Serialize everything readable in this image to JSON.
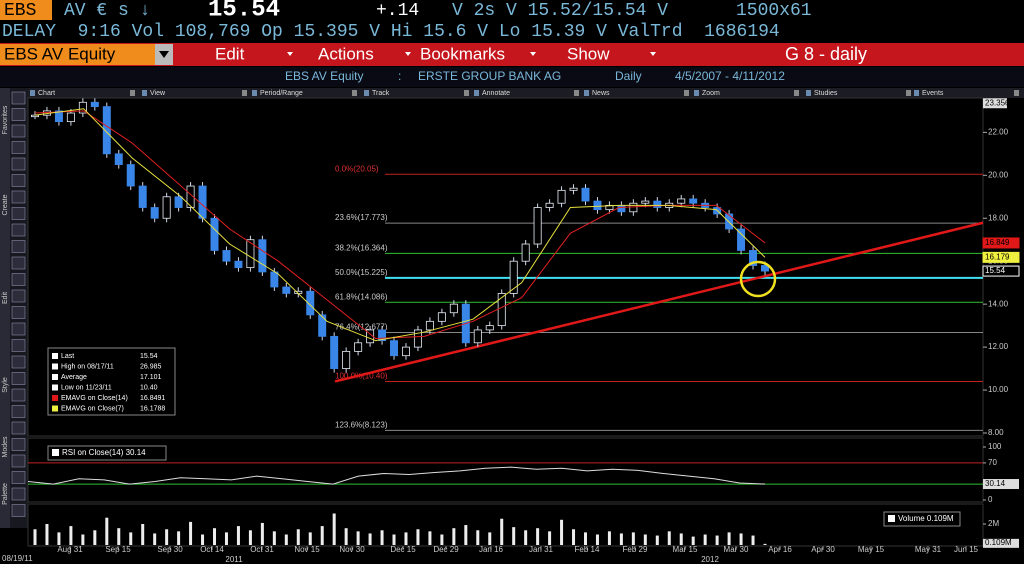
{
  "quote": {
    "ticker": "EBS",
    "market": "AV € s ↓",
    "last": "15.54",
    "change": "+.14",
    "bidask": "V 2s V 15.52/15.54 V",
    "size": "1500x61",
    "details": "DELAY  9:16 Vol 108,769 Op 15.395 V Hi 15.6 V Lo 15.39 V ValTrd  1686194"
  },
  "menu": {
    "security": "EBS AV Equity",
    "items": [
      "Edit",
      "Actions",
      "Bookmarks",
      "Show"
    ],
    "page": "G 8 - daily"
  },
  "header": {
    "security": "EBS AV Equity",
    "separator": ":",
    "name": "ERSTE GROUP BANK AG",
    "period": "Daily",
    "range": "4/5/2007 - 4/11/2012"
  },
  "toolbar": [
    "Chart",
    "View",
    "Period/Range",
    "Track",
    "Annotate",
    "News",
    "Zoom",
    "Studies",
    "Events"
  ],
  "sidebar": [
    "Favorites",
    "Create",
    "Edit",
    "Style",
    "Modes",
    "Palette"
  ],
  "chart": {
    "type": "candlestick",
    "price": {
      "ylim": [
        7.86,
        23.6
      ],
      "yticks": [
        {
          "value": 22,
          "label": "22.00"
        },
        {
          "value": 20,
          "label": "20.00"
        },
        {
          "value": 18,
          "label": "18.00"
        },
        {
          "value": 16,
          "label": "16.00"
        },
        {
          "value": 14,
          "label": "14.00"
        },
        {
          "value": 12,
          "label": "12.00"
        },
        {
          "value": 10,
          "label": "10.00"
        },
        {
          "value": 8,
          "label": "8.00"
        }
      ],
      "top_value": 23.356,
      "values": [
        22.8,
        23.0,
        22.5,
        22.9,
        23.4,
        23.2,
        21.0,
        20.5,
        19.5,
        18.5,
        18.0,
        19.0,
        18.5,
        19.5,
        18.0,
        16.5,
        16.0,
        15.7,
        17.0,
        15.5,
        14.8,
        14.5,
        14.6,
        13.5,
        12.5,
        11.0,
        11.8,
        12.2,
        12.8,
        12.3,
        11.6,
        12.0,
        12.8,
        13.2,
        13.6,
        14.0,
        12.2,
        12.8,
        13.0,
        14.5,
        16.0,
        16.8,
        18.5,
        18.7,
        19.3,
        19.4,
        18.8,
        18.4,
        18.6,
        18.3,
        18.7,
        18.8,
        18.5,
        18.7,
        18.9,
        18.7,
        18.5,
        18.2,
        17.5,
        16.5,
        15.8,
        15.54
      ],
      "ema14": {
        "color": "#e02020",
        "values": [
          22.9,
          23.0,
          21.5,
          19.5,
          17.5,
          16.0,
          14.2,
          12.4,
          12.5,
          13.2,
          14.3,
          17.3,
          18.5,
          18.6,
          18.6,
          16.85
        ]
      },
      "ema7": {
        "color": "#e8e040",
        "values": [
          22.8,
          23.1,
          20.8,
          19.0,
          16.8,
          15.4,
          13.2,
          12.3,
          12.7,
          13.3,
          15.0,
          18.5,
          18.6,
          18.6,
          18.4,
          16.18
        ]
      },
      "fib": [
        {
          "label": "0.0%(20.05)",
          "value": 20.05,
          "color": "#c02020"
        },
        {
          "label": "23.6%(17.773)",
          "value": 17.773,
          "color": "#888888"
        },
        {
          "label": "38.2%(16.364)",
          "value": 16.364,
          "color": "#30c030"
        },
        {
          "label": "50.0%(15.225)",
          "value": 15.225,
          "color": "#40e0f0"
        },
        {
          "label": "61.8%(14.086)",
          "value": 14.086,
          "color": "#30c030"
        },
        {
          "label": "76.4%(12.677)",
          "value": 12.677,
          "color": "#888888"
        },
        {
          "label": "100.0%(10.40)",
          "value": 10.4,
          "color": "#c02020"
        },
        {
          "label": "123.6%(8.123)",
          "value": 8.123,
          "color": "#888888"
        }
      ],
      "trendline": {
        "color": "#e01818",
        "values": [
          10.4,
          17.79
        ]
      },
      "tags": [
        {
          "value": 16.849,
          "color": "#e01818"
        },
        {
          "value": 16.179,
          "color": "#f0f040"
        },
        {
          "value": 15.54,
          "color": "#ffffff"
        }
      ]
    },
    "legend": [
      {
        "label": "Last",
        "value": "15.54"
      },
      {
        "label": "High on 08/17/11",
        "value": "26.985"
      },
      {
        "label": "Average",
        "value": "17.101"
      },
      {
        "label": "Low on 11/23/11",
        "value": "10.40"
      },
      {
        "label": "EMAVG on Close(14)",
        "value": "16.8491",
        "color": "#e01818"
      },
      {
        "label": "EMAVG on Close(7)",
        "value": "16.1788",
        "color": "#f0f040"
      }
    ],
    "rsi": {
      "legend": "RSI on Close(14) 30.14",
      "ylim": [
        0,
        100
      ],
      "yticks": [
        100,
        70,
        0
      ],
      "levels": [
        {
          "value": 70,
          "color": "#c02020"
        },
        {
          "value": 30,
          "color": "#30c030"
        }
      ],
      "last": 30.14,
      "values": [
        35,
        30,
        40,
        38,
        30,
        35,
        42,
        40,
        38,
        45,
        40,
        35,
        30,
        45,
        50,
        48,
        52,
        55,
        60,
        62,
        58,
        60,
        55,
        58,
        56,
        50,
        45,
        40,
        32,
        30.14
      ]
    },
    "volume": {
      "legend": "Volume 0.109M",
      "ylim": [
        0,
        4
      ],
      "yticks": [
        {
          "value": 2,
          "label": "2M"
        }
      ],
      "last": {
        "value": 0.109,
        "label": "0.109M"
      },
      "values": [
        1.5,
        2.0,
        1.2,
        1.8,
        1.0,
        1.4,
        2.6,
        1.6,
        1.2,
        2.0,
        1.1,
        1.5,
        1.3,
        2.2,
        1.0,
        1.6,
        1.2,
        1.8,
        1.4,
        2.1,
        1.3,
        1.0,
        1.5,
        1.2,
        1.8,
        3.0,
        1.6,
        1.3,
        1.1,
        1.4,
        1.0,
        1.2,
        1.5,
        1.3,
        1.0,
        1.6,
        1.9,
        1.4,
        1.2,
        2.5,
        1.7,
        1.4,
        1.6,
        1.3,
        2.4,
        1.5,
        1.2,
        1.0,
        1.3,
        1.1,
        1.2,
        1.0,
        0.9,
        1.3,
        1.1,
        0.8,
        1.0,
        0.9,
        1.2,
        1.1,
        0.9,
        0.109
      ]
    },
    "xaxis": {
      "labels": [
        "Aug 31",
        "Sep 15",
        "Sep 30",
        "Oct 14",
        "Oct 31",
        "Nov 15",
        "Nov 30",
        "Dec 15",
        "Dec 29",
        "Jan 16",
        "Jan 31",
        "Feb 14",
        "Feb 29",
        "Mar 15",
        "Mar 30",
        "Apr 16",
        "Apr 30",
        "May 15",
        "May 31",
        "Jun 15"
      ],
      "years": [
        "2011",
        "2012"
      ],
      "start": "08/19/11"
    }
  }
}
